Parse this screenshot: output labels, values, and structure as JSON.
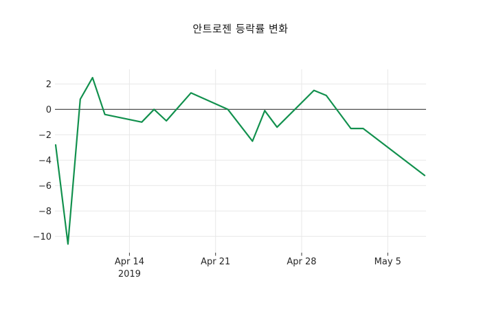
{
  "chart_data": {
    "type": "line",
    "title": "안트로젠 등락률 변화",
    "xlabel": "",
    "ylabel": "",
    "x_axis": {
      "tick_labels": [
        "Apr 14",
        "Apr 21",
        "Apr 28",
        "May 5"
      ],
      "tick_day_offsets": [
        6,
        13,
        20,
        27
      ],
      "year_label": "2019",
      "year_tick_index": 0
    },
    "y_axis": {
      "tick_values": [
        2,
        0,
        -2,
        -4,
        -6,
        -8,
        -10
      ]
    },
    "ylim": [
      -11.3,
      3.2
    ],
    "xlim_days": [
      -0.1,
      30.15
    ],
    "grid": true,
    "zero_line": true,
    "legend_position": "none",
    "series": [
      {
        "name": "안트로젠 등락률",
        "color": "#11904d",
        "points": [
          {
            "date": "Apr 8",
            "day": 0,
            "value": -2.8
          },
          {
            "date": "Apr 9",
            "day": 1,
            "value": -10.6
          },
          {
            "date": "Apr 10",
            "day": 2,
            "value": 0.8
          },
          {
            "date": "Apr 11",
            "day": 3,
            "value": 2.5
          },
          {
            "date": "Apr 12",
            "day": 4,
            "value": -0.4
          },
          {
            "date": "Apr 15",
            "day": 7,
            "value": -1.0
          },
          {
            "date": "Apr 16",
            "day": 8,
            "value": 0.0
          },
          {
            "date": "Apr 17",
            "day": 9,
            "value": -0.9
          },
          {
            "date": "Apr 19",
            "day": 11,
            "value": 1.3
          },
          {
            "date": "Apr 22",
            "day": 14,
            "value": 0.0
          },
          {
            "date": "Apr 24",
            "day": 16,
            "value": -2.5
          },
          {
            "date": "Apr 25",
            "day": 17,
            "value": -0.1
          },
          {
            "date": "Apr 26",
            "day": 18,
            "value": -1.4
          },
          {
            "date": "Apr 29",
            "day": 21,
            "value": 1.5
          },
          {
            "date": "Apr 30",
            "day": 22,
            "value": 1.1
          },
          {
            "date": "May 2",
            "day": 24,
            "value": -1.5
          },
          {
            "date": "May 3",
            "day": 25,
            "value": -1.5
          },
          {
            "date": "May 8",
            "day": 30,
            "value": -5.2
          }
        ]
      }
    ]
  },
  "colors": {
    "background": "#ffffff",
    "grid": "#e7e7e7",
    "zero_line": "#3d3d3d",
    "tick_mark": "#333333",
    "tick_text": "#262626",
    "title_text": "#161616"
  }
}
